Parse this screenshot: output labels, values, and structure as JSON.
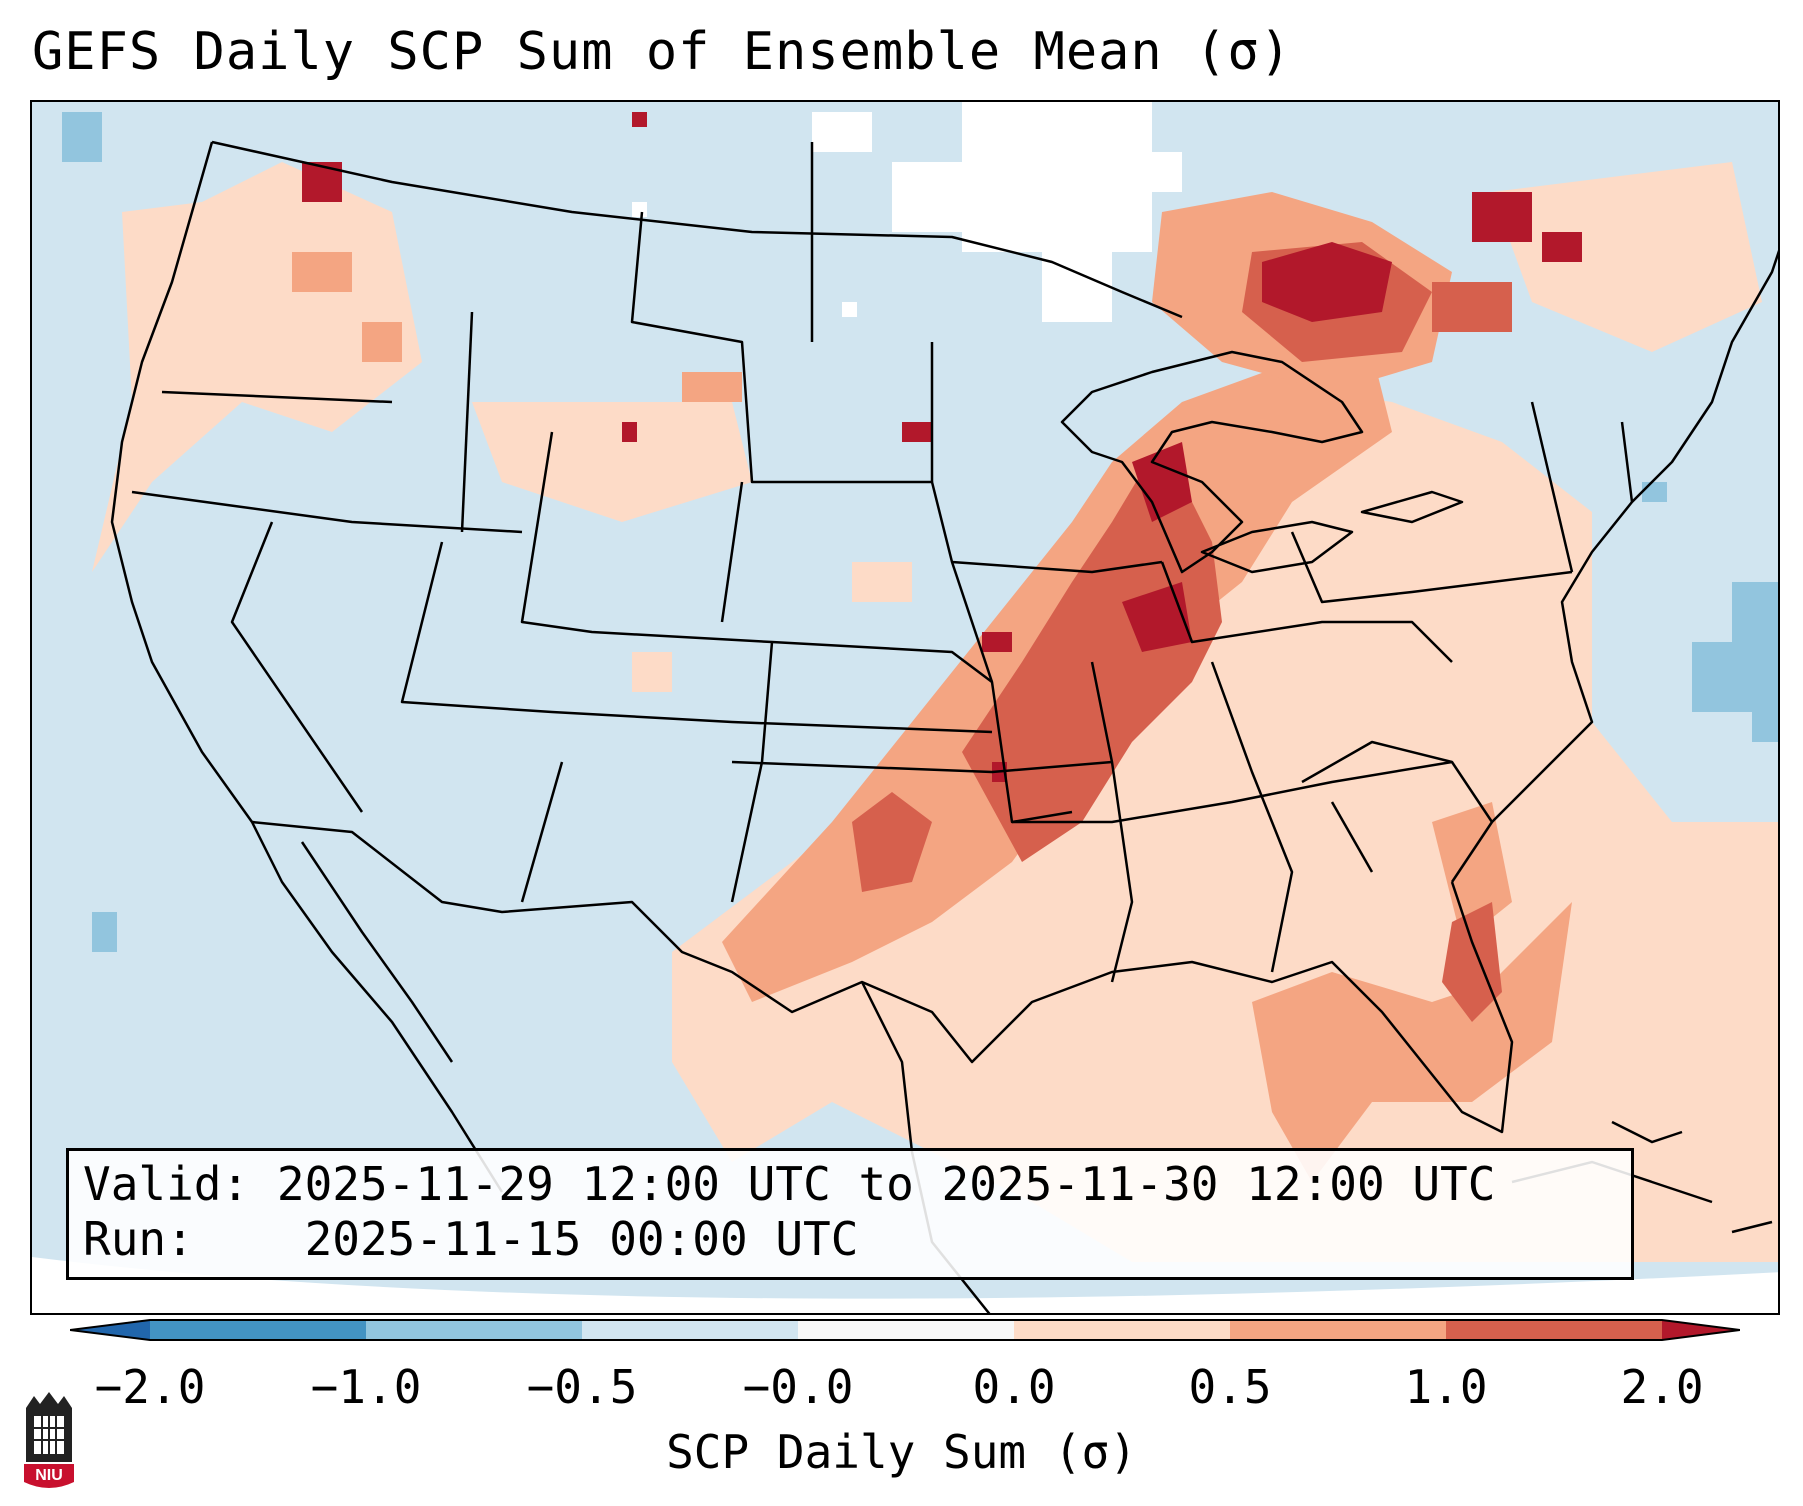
{
  "title": "GEFS Daily SCP Sum of Ensemble Mean (σ)",
  "info": {
    "valid_label": "Valid:",
    "valid_text": "2025-11-29 12:00 UTC to 2025-11-30 12:00 UTC",
    "run_label": "Run:",
    "run_text": "2025-11-15 00:00 UTC"
  },
  "colorbar": {
    "label": "SCP Daily Sum (σ)",
    "ticks": [
      "−2.0",
      "−1.0",
      "−0.5",
      "−0.0",
      "0.0",
      "0.5",
      "1.0",
      "2.0"
    ],
    "colors": [
      "#2166ac",
      "#4393c3",
      "#92c5de",
      "#d1e5f0",
      "#f7f7f7",
      "#fddbc7",
      "#f4a582",
      "#d6604d",
      "#b2182b"
    ]
  },
  "logo": {
    "text": "NIU",
    "icon": "niu-logo-icon"
  },
  "map": {
    "projection": "Lambert conformal",
    "region": "Contiguous United States"
  }
}
